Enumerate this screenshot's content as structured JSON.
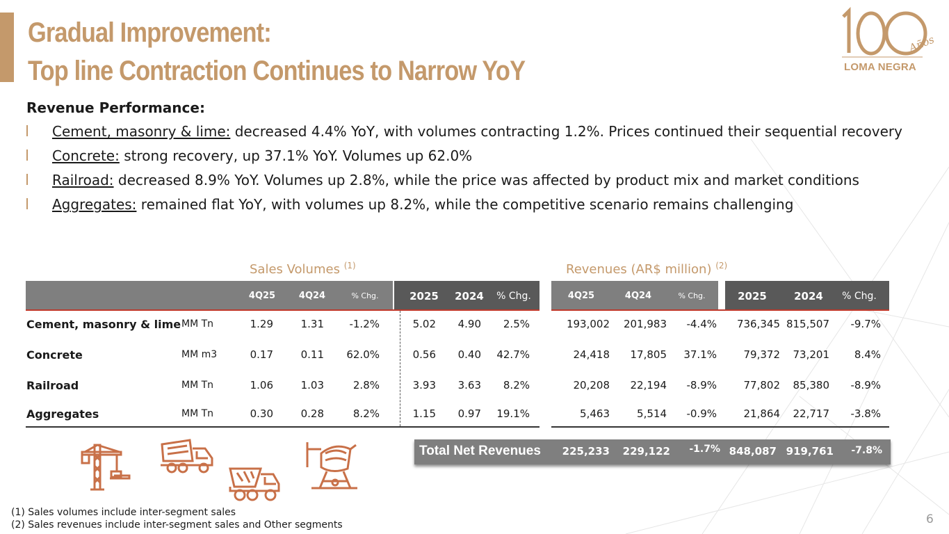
{
  "title": {
    "line1": "Gradual Improvement:",
    "line2": "Top line Contraction Continues to Narrow YoY"
  },
  "logo": {
    "number": "100",
    "anos": "Años",
    "brand": "LOMA NEGRA"
  },
  "section_heading": "Revenue Performance:",
  "bullets": [
    {
      "label": "Cement, masonry & lime:",
      "text": " decreased 4.4% YoY, with volumes contracting 1.2%. Prices continued their sequential recovery"
    },
    {
      "label": "Concrete:",
      "text": " strong recovery, up 37.1% YoY.  Volumes up 62.0%"
    },
    {
      "label": "Railroad:",
      "text": " decreased 8.9% YoY. Volumes up 2.8%, while the price was affected by product mix and market conditions"
    },
    {
      "label": "Aggregates:",
      "text": " remained flat YoY, with volumes up 8.2%, while the competitive scenario remains challenging"
    }
  ],
  "table": {
    "volumes_title": "Sales Volumes",
    "volumes_note": "(1)",
    "revenues_title": "Revenues (AR$ million)",
    "revenues_note": "(2)",
    "headers": [
      "4Q25",
      "4Q24",
      "% Chg.",
      "2025",
      "2024",
      "% Chg."
    ],
    "rows": [
      {
        "segment": "Cement, masonry & lime",
        "unit": "MM Tn",
        "vol": [
          "1.29",
          "1.31",
          "-1.2%",
          "5.02",
          "4.90",
          "2.5%"
        ],
        "rev": [
          "193,002",
          "201,983",
          "-4.4%",
          "736,345",
          "815,507",
          "-9.7%"
        ]
      },
      {
        "segment": "Concrete",
        "unit": "MM m3",
        "vol": [
          "0.17",
          "0.11",
          "62.0%",
          "0.56",
          "0.40",
          "42.7%"
        ],
        "rev": [
          "24,418",
          "17,805",
          "37.1%",
          "79,372",
          "73,201",
          "8.4%"
        ]
      },
      {
        "segment": "Railroad",
        "unit": "MM Tn",
        "vol": [
          "1.06",
          "1.03",
          "2.8%",
          "3.93",
          "3.63",
          "8.2%"
        ],
        "rev": [
          "20,208",
          "22,194",
          "-8.9%",
          "77,802",
          "85,380",
          "-8.9%"
        ]
      },
      {
        "segment": "Aggregates",
        "unit": "MM Tn",
        "vol": [
          "0.30",
          "0.28",
          "8.2%",
          "1.15",
          "0.97",
          "19.1%"
        ],
        "rev": [
          "5,463",
          "5,514",
          "-0.9%",
          "21,864",
          "22,717",
          "-3.8%"
        ]
      }
    ],
    "total": {
      "label": "Total Net Revenues",
      "values": [
        "225,233",
        "229,122",
        "-1.7%",
        "848,087",
        "919,761",
        "-7.8%"
      ]
    }
  },
  "footnotes": [
    "(1)  Sales volumes include inter-segment sales",
    "(2) Sales revenues include inter-segment sales and Other segments"
  ],
  "page_number": "6",
  "colors": {
    "accent": "#c4996b",
    "header_gray": "#7f7f7f",
    "header_dark": "#595959",
    "icon": "#c87048",
    "red_rule": "#c0392b"
  }
}
